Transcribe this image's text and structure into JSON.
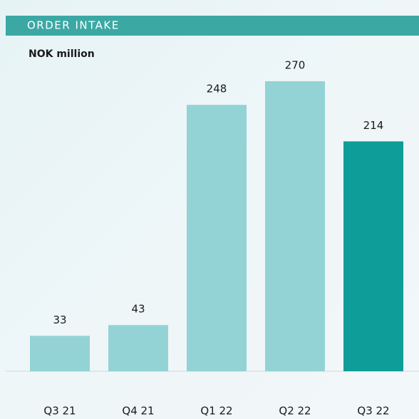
{
  "chart_data": {
    "type": "bar",
    "title": "ORDER INTAKE",
    "subtitle": "NOK million",
    "categories": [
      "Q3 21",
      "Q4 21",
      "Q1 22",
      "Q2 22",
      "Q3 22"
    ],
    "values": [
      33,
      43,
      248,
      270,
      214
    ],
    "colors": [
      "#93d3d5",
      "#93d3d5",
      "#93d3d5",
      "#93d3d5",
      "#0f9d99"
    ]
  }
}
